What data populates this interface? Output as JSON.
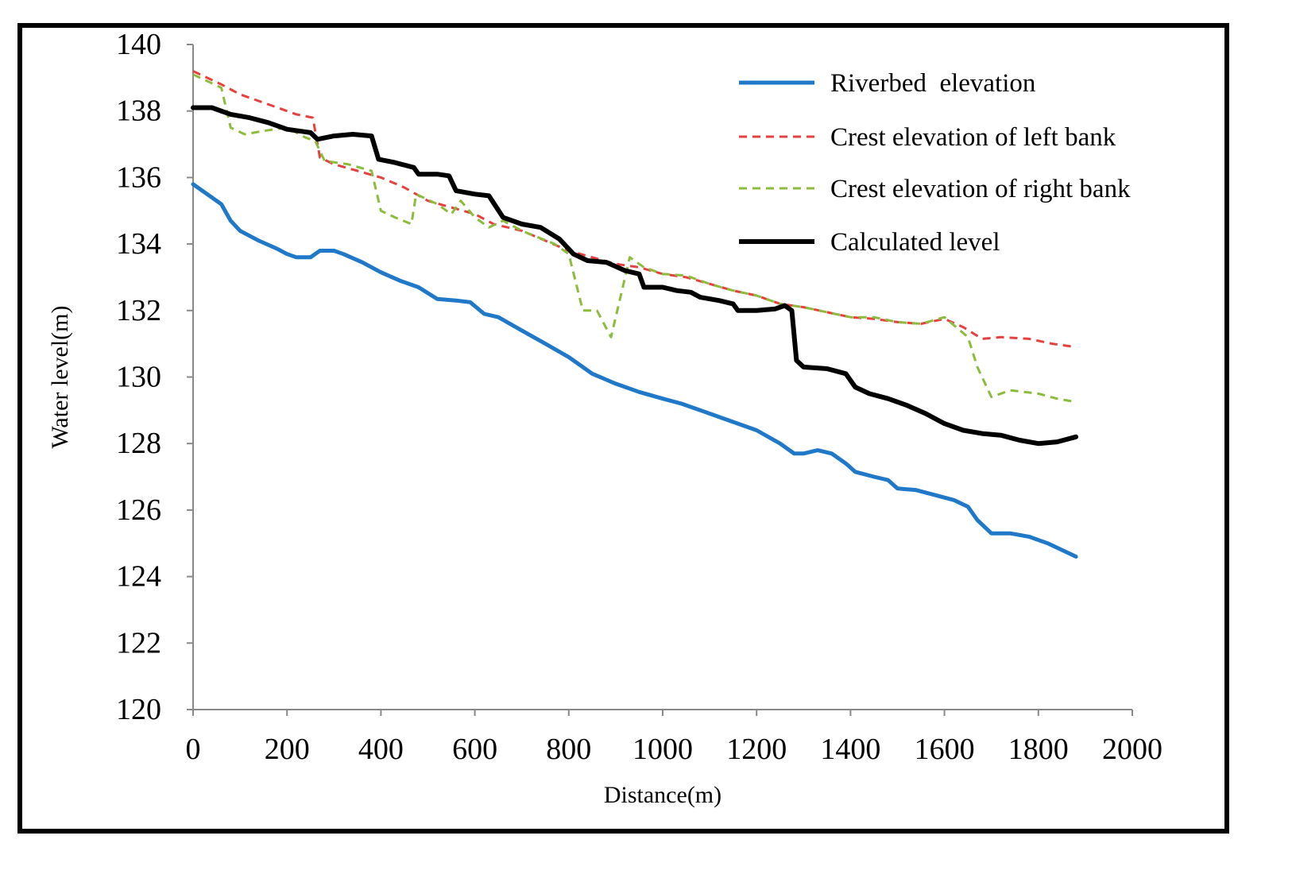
{
  "chart_data": {
    "type": "line",
    "title": "",
    "xlabel": "Distance(m)",
    "ylabel": "Water level(m)",
    "xlim": [
      0,
      2000
    ],
    "ylim": [
      120,
      140
    ],
    "x_ticks": [
      "0",
      "200",
      "400",
      "600",
      "800",
      "1000",
      "1200",
      "1400",
      "1600",
      "1800",
      "2000"
    ],
    "y_ticks": [
      "120",
      "122",
      "124",
      "126",
      "128",
      "130",
      "132",
      "134",
      "136",
      "138",
      "140"
    ],
    "grid": false,
    "legend_position": "top-right",
    "series": [
      {
        "name": "Riverbed  elevation",
        "color": "#1f78c8",
        "style": "solid",
        "points": [
          [
            0,
            135.8
          ],
          [
            30,
            135.5
          ],
          [
            60,
            135.2
          ],
          [
            80,
            134.7
          ],
          [
            100,
            134.4
          ],
          [
            140,
            134.1
          ],
          [
            180,
            133.85
          ],
          [
            200,
            133.7
          ],
          [
            220,
            133.6
          ],
          [
            250,
            133.6
          ],
          [
            270,
            133.8
          ],
          [
            300,
            133.8
          ],
          [
            320,
            133.7
          ],
          [
            360,
            133.45
          ],
          [
            400,
            133.15
          ],
          [
            440,
            132.9
          ],
          [
            480,
            132.7
          ],
          [
            520,
            132.35
          ],
          [
            560,
            132.3
          ],
          [
            590,
            132.25
          ],
          [
            620,
            131.9
          ],
          [
            650,
            131.8
          ],
          [
            700,
            131.4
          ],
          [
            750,
            131.0
          ],
          [
            800,
            130.6
          ],
          [
            850,
            130.1
          ],
          [
            900,
            129.8
          ],
          [
            950,
            129.55
          ],
          [
            1000,
            129.35
          ],
          [
            1040,
            129.2
          ],
          [
            1100,
            128.9
          ],
          [
            1150,
            128.65
          ],
          [
            1200,
            128.4
          ],
          [
            1250,
            128.0
          ],
          [
            1280,
            127.7
          ],
          [
            1300,
            127.7
          ],
          [
            1330,
            127.8
          ],
          [
            1360,
            127.7
          ],
          [
            1390,
            127.4
          ],
          [
            1410,
            127.15
          ],
          [
            1450,
            127.0
          ],
          [
            1480,
            126.9
          ],
          [
            1500,
            126.65
          ],
          [
            1540,
            126.6
          ],
          [
            1580,
            126.45
          ],
          [
            1620,
            126.3
          ],
          [
            1650,
            126.1
          ],
          [
            1670,
            125.7
          ],
          [
            1700,
            125.3
          ],
          [
            1740,
            125.3
          ],
          [
            1780,
            125.2
          ],
          [
            1820,
            125.0
          ],
          [
            1880,
            124.6
          ]
        ]
      },
      {
        "name": "Crest elevation of left bank",
        "color": "#e84040",
        "style": "dashed",
        "points": [
          [
            0,
            139.2
          ],
          [
            60,
            138.8
          ],
          [
            100,
            138.5
          ],
          [
            160,
            138.2
          ],
          [
            220,
            137.9
          ],
          [
            255,
            137.8
          ],
          [
            270,
            136.6
          ],
          [
            300,
            136.4
          ],
          [
            350,
            136.2
          ],
          [
            400,
            136.0
          ],
          [
            450,
            135.7
          ],
          [
            500,
            135.3
          ],
          [
            550,
            135.1
          ],
          [
            600,
            134.9
          ],
          [
            640,
            134.6
          ],
          [
            700,
            134.4
          ],
          [
            750,
            134.1
          ],
          [
            800,
            133.8
          ],
          [
            850,
            133.6
          ],
          [
            900,
            133.4
          ],
          [
            950,
            133.3
          ],
          [
            1000,
            133.1
          ],
          [
            1050,
            133.0
          ],
          [
            1100,
            132.8
          ],
          [
            1150,
            132.6
          ],
          [
            1200,
            132.45
          ],
          [
            1250,
            132.2
          ],
          [
            1300,
            132.1
          ],
          [
            1350,
            131.95
          ],
          [
            1400,
            131.8
          ],
          [
            1450,
            131.75
          ],
          [
            1500,
            131.65
          ],
          [
            1550,
            131.6
          ],
          [
            1600,
            131.75
          ],
          [
            1640,
            131.5
          ],
          [
            1680,
            131.15
          ],
          [
            1720,
            131.2
          ],
          [
            1780,
            131.15
          ],
          [
            1830,
            131.0
          ],
          [
            1880,
            130.9
          ]
        ]
      },
      {
        "name": "Crest elevation of right bank",
        "color": "#8cbc3c",
        "style": "dashed",
        "points": [
          [
            0,
            139.1
          ],
          [
            60,
            138.7
          ],
          [
            80,
            137.5
          ],
          [
            110,
            137.3
          ],
          [
            150,
            137.4
          ],
          [
            200,
            137.5
          ],
          [
            240,
            137.2
          ],
          [
            260,
            137.1
          ],
          [
            280,
            136.5
          ],
          [
            330,
            136.4
          ],
          [
            380,
            136.2
          ],
          [
            400,
            135.0
          ],
          [
            430,
            134.8
          ],
          [
            465,
            134.6
          ],
          [
            475,
            135.5
          ],
          [
            520,
            135.2
          ],
          [
            550,
            134.9
          ],
          [
            570,
            135.3
          ],
          [
            600,
            134.8
          ],
          [
            630,
            134.5
          ],
          [
            660,
            134.7
          ],
          [
            700,
            134.4
          ],
          [
            770,
            134.0
          ],
          [
            800,
            133.7
          ],
          [
            830,
            132.0
          ],
          [
            860,
            132.0
          ],
          [
            890,
            131.2
          ],
          [
            930,
            133.6
          ],
          [
            960,
            133.3
          ],
          [
            1000,
            133.1
          ],
          [
            1050,
            133.05
          ],
          [
            1100,
            132.8
          ],
          [
            1150,
            132.6
          ],
          [
            1200,
            132.45
          ],
          [
            1250,
            132.2
          ],
          [
            1300,
            132.1
          ],
          [
            1350,
            131.95
          ],
          [
            1400,
            131.8
          ],
          [
            1450,
            131.8
          ],
          [
            1500,
            131.65
          ],
          [
            1550,
            131.6
          ],
          [
            1600,
            131.8
          ],
          [
            1650,
            131.2
          ],
          [
            1670,
            130.3
          ],
          [
            1700,
            129.4
          ],
          [
            1740,
            129.6
          ],
          [
            1800,
            129.5
          ],
          [
            1840,
            129.35
          ],
          [
            1880,
            129.25
          ]
        ]
      },
      {
        "name": "Calculated level",
        "color": "#000000",
        "style": "solid",
        "points": [
          [
            0,
            138.1
          ],
          [
            40,
            138.1
          ],
          [
            80,
            137.9
          ],
          [
            120,
            137.8
          ],
          [
            160,
            137.65
          ],
          [
            200,
            137.45
          ],
          [
            250,
            137.35
          ],
          [
            265,
            137.15
          ],
          [
            300,
            137.25
          ],
          [
            340,
            137.3
          ],
          [
            380,
            137.25
          ],
          [
            395,
            136.55
          ],
          [
            430,
            136.45
          ],
          [
            470,
            136.3
          ],
          [
            480,
            136.1
          ],
          [
            520,
            136.1
          ],
          [
            545,
            136.05
          ],
          [
            560,
            135.6
          ],
          [
            600,
            135.5
          ],
          [
            630,
            135.45
          ],
          [
            660,
            134.8
          ],
          [
            700,
            134.6
          ],
          [
            740,
            134.5
          ],
          [
            780,
            134.15
          ],
          [
            810,
            133.7
          ],
          [
            840,
            133.5
          ],
          [
            880,
            133.45
          ],
          [
            920,
            133.2
          ],
          [
            950,
            133.1
          ],
          [
            960,
            132.7
          ],
          [
            1000,
            132.7
          ],
          [
            1030,
            132.6
          ],
          [
            1060,
            132.55
          ],
          [
            1080,
            132.4
          ],
          [
            1120,
            132.3
          ],
          [
            1150,
            132.2
          ],
          [
            1160,
            132.0
          ],
          [
            1200,
            132.0
          ],
          [
            1240,
            132.05
          ],
          [
            1260,
            132.15
          ],
          [
            1275,
            132.0
          ],
          [
            1285,
            130.5
          ],
          [
            1300,
            130.3
          ],
          [
            1350,
            130.25
          ],
          [
            1390,
            130.1
          ],
          [
            1410,
            129.7
          ],
          [
            1440,
            129.5
          ],
          [
            1480,
            129.35
          ],
          [
            1520,
            129.15
          ],
          [
            1560,
            128.9
          ],
          [
            1600,
            128.6
          ],
          [
            1640,
            128.4
          ],
          [
            1680,
            128.3
          ],
          [
            1720,
            128.25
          ],
          [
            1760,
            128.1
          ],
          [
            1800,
            128.0
          ],
          [
            1840,
            128.05
          ],
          [
            1880,
            128.2
          ]
        ]
      }
    ]
  }
}
